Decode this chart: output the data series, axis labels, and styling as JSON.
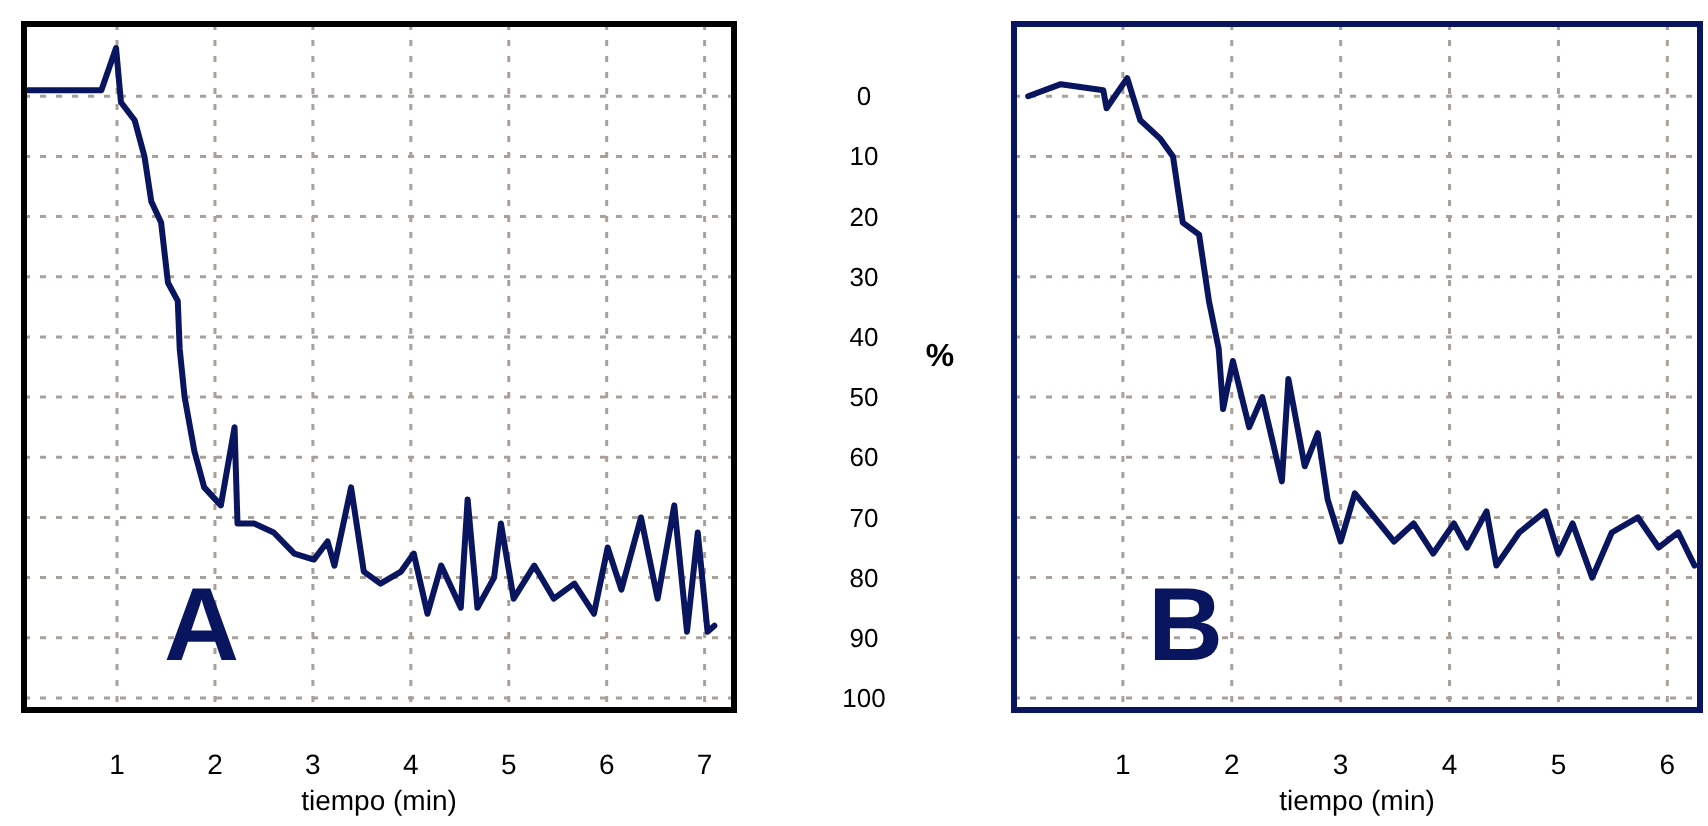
{
  "chart_data": [
    {
      "type": "line",
      "xlabel": "tiempo (min)",
      "annotations": [
        "A"
      ],
      "xlim": [
        0.05,
        7.3
      ],
      "xticks": [
        1,
        2,
        3,
        4,
        5,
        6,
        7
      ],
      "ylim": [
        102,
        -12
      ],
      "yticks": [
        0,
        10,
        20,
        30,
        40,
        50,
        60,
        70,
        80,
        90,
        100
      ],
      "grid": true,
      "tick_labels": "x",
      "series": [
        {
          "color": "#0a1560",
          "x": [
            0.09,
            0.5,
            0.84,
            0.99,
            1.04,
            1.18,
            1.28,
            1.35,
            1.45,
            1.52,
            1.62,
            1.64,
            1.69,
            1.79,
            1.89,
            2.06,
            2.2,
            2.23,
            2.4,
            2.6,
            2.81,
            3.01,
            3.15,
            3.22,
            3.39,
            3.52,
            3.69,
            3.9,
            4.03,
            4.17,
            4.31,
            4.51,
            4.58,
            4.68,
            4.85,
            4.92,
            5.05,
            5.26,
            5.46,
            5.67,
            5.87,
            6.01,
            6.15,
            6.35,
            6.52,
            6.69,
            6.82,
            6.93,
            7.03,
            7.1
          ],
          "values": [
            -1,
            -1,
            -1,
            -8,
            1,
            4,
            10,
            17.5,
            21,
            31,
            34,
            42,
            50,
            59,
            65,
            68,
            55,
            71,
            71,
            72.5,
            76,
            77,
            74,
            78,
            65,
            79,
            81,
            79,
            76,
            86,
            78,
            85,
            67,
            85,
            80,
            71,
            83.5,
            78,
            83.5,
            81,
            86,
            75,
            82,
            70,
            83.5,
            68,
            89,
            72.5,
            89,
            88
          ]
        }
      ]
    },
    {
      "type": "line",
      "xlabel": "tiempo (min)",
      "ylabel": "%",
      "annotations": [
        "B"
      ],
      "xlim": [
        0,
        6.3
      ],
      "xticks": [
        1,
        2,
        3,
        4,
        5,
        6
      ],
      "ylim": [
        102,
        -12
      ],
      "yticks": [
        0,
        10,
        20,
        30,
        40,
        50,
        60,
        70,
        80,
        90,
        100
      ],
      "grid": true,
      "series": [
        {
          "color": "#0a1560",
          "x": [
            0.13,
            0.43,
            0.82,
            0.85,
            1.04,
            1.16,
            1.34,
            1.46,
            1.55,
            1.7,
            1.79,
            1.88,
            1.92,
            2.01,
            2.16,
            2.28,
            2.46,
            2.52,
            2.67,
            2.79,
            2.88,
            3.0,
            3.13,
            3.31,
            3.49,
            3.67,
            3.85,
            4.04,
            4.16,
            4.34,
            4.43,
            4.64,
            4.88,
            5.0,
            5.13,
            5.31,
            5.49,
            5.73,
            5.92,
            6.1,
            6.25
          ],
          "values": [
            0,
            -2,
            -1,
            2,
            -3,
            4,
            7,
            10,
            21,
            23,
            34,
            42,
            52,
            44,
            55,
            50,
            64,
            47,
            61.5,
            56,
            67,
            74,
            66,
            70,
            74,
            71,
            76,
            71,
            75,
            69,
            78,
            72.5,
            69,
            76,
            71,
            80,
            72.5,
            70,
            75,
            72.5,
            78
          ]
        }
      ]
    }
  ]
}
